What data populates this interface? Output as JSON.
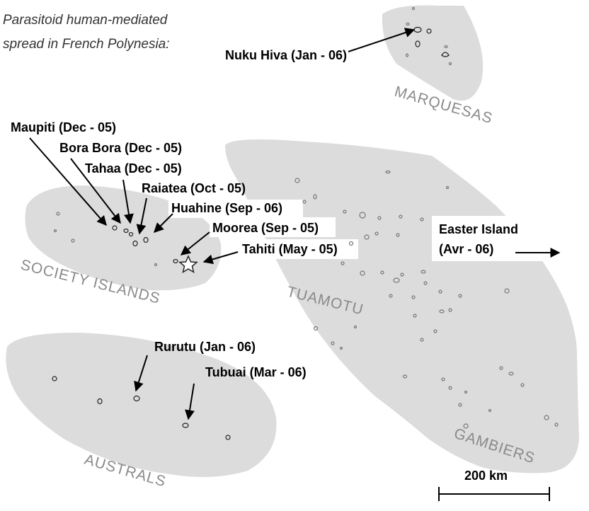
{
  "title": {
    "line1": "Parasitoid human-mediated",
    "line2": "spread in French Polynesia:"
  },
  "regions": {
    "marquesas": "MARQUESAS",
    "society": "SOCIETY ISLANDS",
    "tuamotu": "TUAMOTU",
    "gambiers": "GAMBIERS",
    "australs": "AUSTRALS"
  },
  "islands": {
    "nuku_hiva": "Nuku Hiva (Jan - 06)",
    "maupiti": "Maupiti (Dec - 05)",
    "bora_bora": "Bora Bora (Dec - 05)",
    "tahaa": "Tahaa (Dec - 05)",
    "raiatea": "Raiatea (Oct - 05)",
    "huahine": "Huahine (Sep - 06)",
    "moorea": "Moorea (Sep - 05)",
    "tahiti": "Tahiti (May - 05)",
    "easter_line1": "Easter Island",
    "easter_line2": "(Avr - 06)",
    "rurutu": "Rurutu (Jan - 06)",
    "tubuai": "Tubuai (Mar - 06)"
  },
  "scale": {
    "label": "200 km"
  },
  "colors": {
    "region_fill": "#dcdcdc",
    "region_text": "#8a8a8a",
    "island_dark": "#222222",
    "island_light": "#777777"
  },
  "icons": {
    "tahiti_marker": "star-icon"
  }
}
